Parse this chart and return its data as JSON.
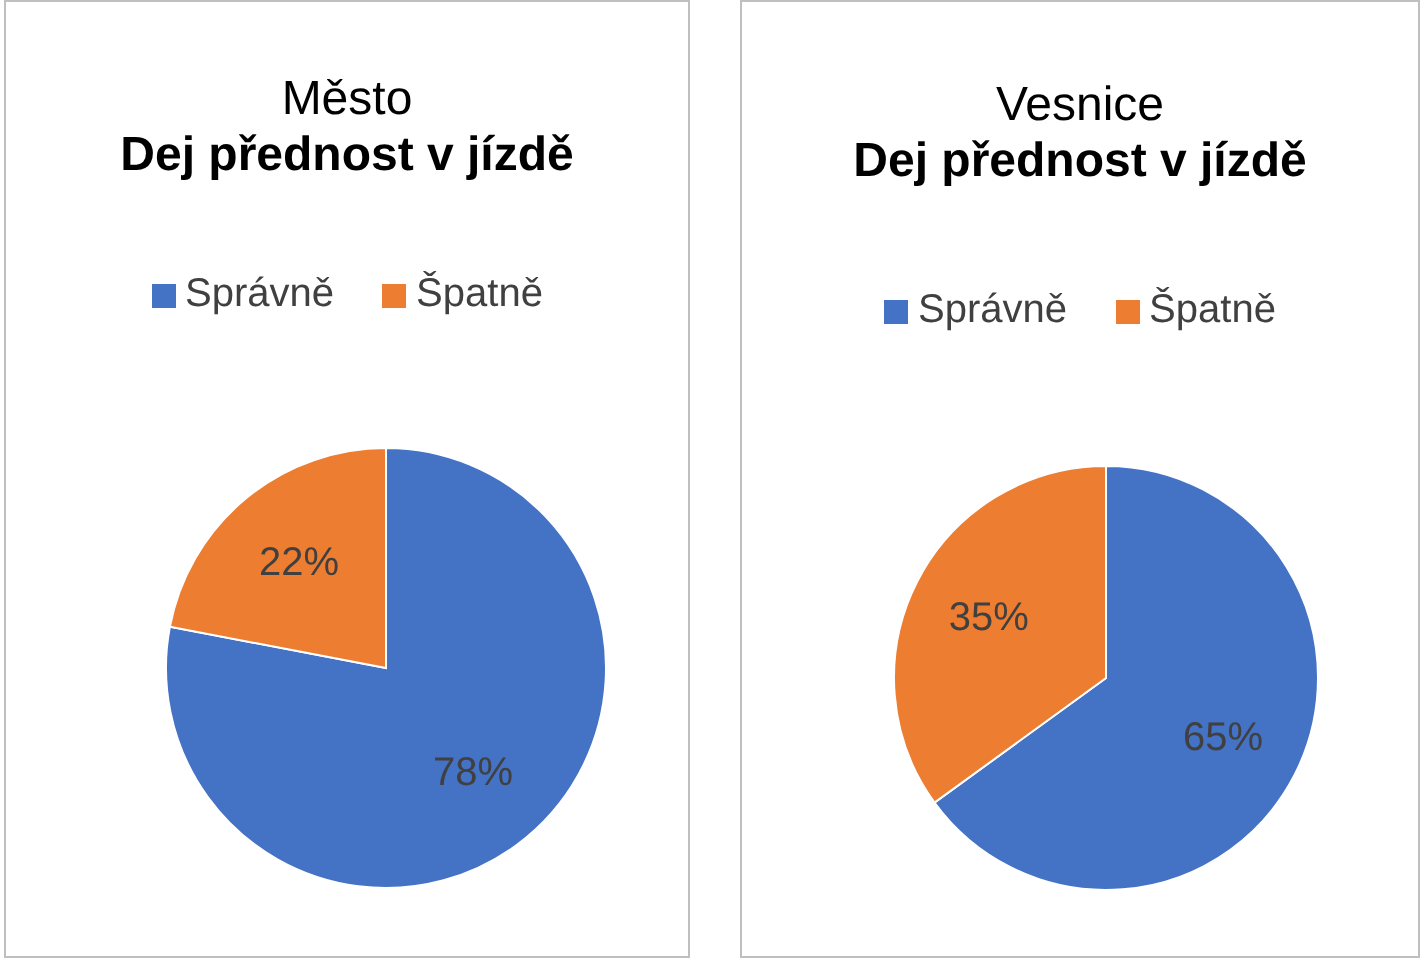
{
  "chart_data": [
    {
      "type": "pie",
      "title": "Město",
      "subtitle": "Dej přednost v jízdě",
      "categories": [
        "Správně",
        "Špatně"
      ],
      "values": [
        78,
        22
      ],
      "colors": [
        "#4472c4",
        "#ed7d31"
      ],
      "value_labels": [
        "78%",
        "22%"
      ],
      "legend": "top"
    },
    {
      "type": "pie",
      "title": "Vesnice",
      "subtitle": "Dej přednost v jízdě",
      "categories": [
        "Správně",
        "Špatně"
      ],
      "values": [
        65,
        35
      ],
      "colors": [
        "#4472c4",
        "#ed7d31"
      ],
      "value_labels": [
        "65%",
        "35%"
      ],
      "legend": "top"
    }
  ]
}
